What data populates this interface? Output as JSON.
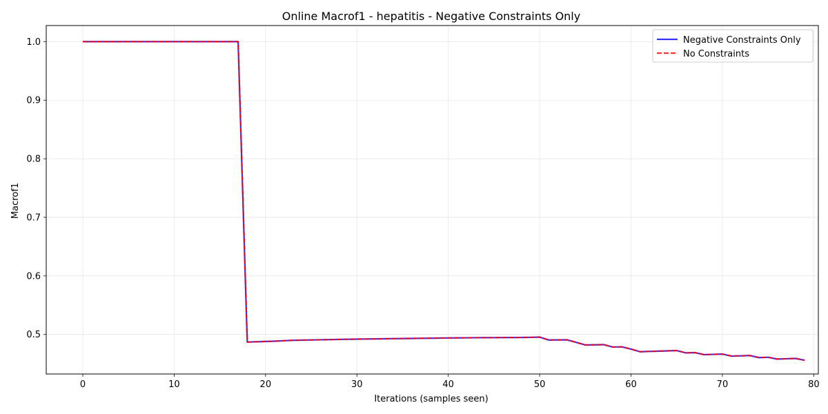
{
  "chart_data": {
    "type": "line",
    "title": "Online Macrof1 - hepatitis - Negative Constraints Only",
    "xlabel": "Iterations (samples seen)",
    "ylabel": "Macrof1",
    "xlim": [
      -4,
      80.5
    ],
    "ylim": [
      0.4325,
      1.0275
    ],
    "xticks": [
      0,
      10,
      20,
      30,
      40,
      50,
      60,
      70,
      80
    ],
    "xtick_labels": [
      "0",
      "10",
      "20",
      "30",
      "40",
      "50",
      "60",
      "70",
      "80"
    ],
    "yticks": [
      0.5,
      0.6,
      0.7,
      0.8,
      0.9,
      1.0
    ],
    "ytick_labels": [
      "0.5",
      "0.6",
      "0.7",
      "0.8",
      "0.9",
      "1.0"
    ],
    "grid": true,
    "legend_position": "top-right",
    "x": [
      0,
      1,
      2,
      3,
      4,
      5,
      6,
      7,
      8,
      9,
      10,
      11,
      12,
      13,
      14,
      15,
      16,
      17,
      18,
      19,
      20,
      21,
      22,
      23,
      24,
      25,
      26,
      27,
      28,
      29,
      30,
      31,
      32,
      33,
      34,
      35,
      36,
      37,
      38,
      39,
      40,
      41,
      42,
      43,
      44,
      45,
      46,
      47,
      48,
      49,
      50,
      51,
      52,
      53,
      54,
      55,
      56,
      57,
      58,
      59,
      60,
      61,
      62,
      63,
      64,
      65,
      66,
      67,
      68,
      69,
      70,
      71,
      72,
      73,
      74,
      75,
      76,
      77,
      78,
      79
    ],
    "series": [
      {
        "name": "Negative Constraints Only",
        "color": "#0000ff",
        "style": "solid",
        "values": [
          1.0,
          1.0,
          1.0,
          1.0,
          1.0,
          1.0,
          1.0,
          1.0,
          1.0,
          1.0,
          1.0,
          1.0,
          1.0,
          1.0,
          1.0,
          1.0,
          1.0,
          1.0,
          0.487,
          0.4875,
          0.488,
          0.4885,
          0.4893,
          0.49,
          0.4903,
          0.4906,
          0.4909,
          0.4912,
          0.4915,
          0.4918,
          0.492,
          0.4922,
          0.4924,
          0.4926,
          0.4928,
          0.493,
          0.4932,
          0.4934,
          0.4936,
          0.4938,
          0.494,
          0.4942,
          0.4943,
          0.4944,
          0.4945,
          0.4946,
          0.4947,
          0.4948,
          0.4949,
          0.495,
          0.4955,
          0.4905,
          0.4907,
          0.4908,
          0.4865,
          0.482,
          0.4823,
          0.4826,
          0.4785,
          0.4788,
          0.475,
          0.4705,
          0.471,
          0.4715,
          0.472,
          0.4725,
          0.4685,
          0.469,
          0.4655,
          0.466,
          0.4665,
          0.463,
          0.4635,
          0.464,
          0.4605,
          0.461,
          0.458,
          0.4585,
          0.459,
          0.456
        ]
      },
      {
        "name": "No Constraints",
        "color": "#ff0000",
        "style": "dashed",
        "values": [
          1.0,
          1.0,
          1.0,
          1.0,
          1.0,
          1.0,
          1.0,
          1.0,
          1.0,
          1.0,
          1.0,
          1.0,
          1.0,
          1.0,
          1.0,
          1.0,
          1.0,
          1.0,
          0.487,
          0.4875,
          0.488,
          0.4885,
          0.4893,
          0.49,
          0.4903,
          0.4906,
          0.4909,
          0.4912,
          0.4915,
          0.4918,
          0.492,
          0.4922,
          0.4924,
          0.4926,
          0.4928,
          0.493,
          0.4932,
          0.4934,
          0.4936,
          0.4938,
          0.494,
          0.4942,
          0.4943,
          0.4944,
          0.4945,
          0.4946,
          0.4947,
          0.4948,
          0.4949,
          0.495,
          0.4955,
          0.4905,
          0.4907,
          0.4908,
          0.4865,
          0.482,
          0.4823,
          0.4826,
          0.4785,
          0.4788,
          0.475,
          0.4705,
          0.471,
          0.4715,
          0.472,
          0.4725,
          0.4685,
          0.469,
          0.4655,
          0.466,
          0.4665,
          0.463,
          0.4635,
          0.464,
          0.4605,
          0.461,
          0.458,
          0.4585,
          0.459,
          0.456
        ]
      }
    ]
  }
}
